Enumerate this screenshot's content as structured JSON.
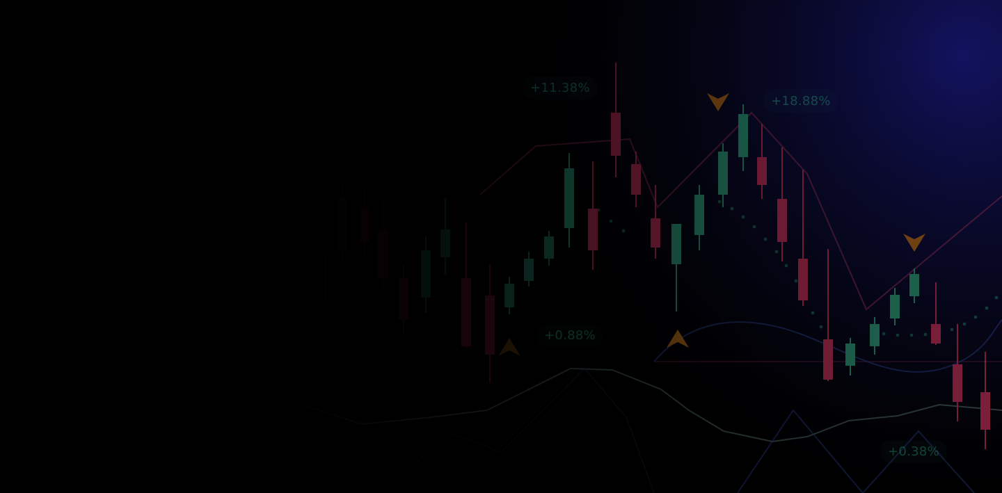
{
  "hero": {
    "labels": {
      "a": "+11.38%",
      "b": "+18.88%",
      "c": "+0.88%",
      "d": "+0.38%"
    }
  },
  "colors": {
    "background": "#000000",
    "up": "#2e9c7c",
    "down": "#c0305a",
    "arrow": "#b26a1e",
    "glow": "#1c1c8c"
  },
  "icons": [
    "up-arrow-icon",
    "down-arrow-icon"
  ]
}
